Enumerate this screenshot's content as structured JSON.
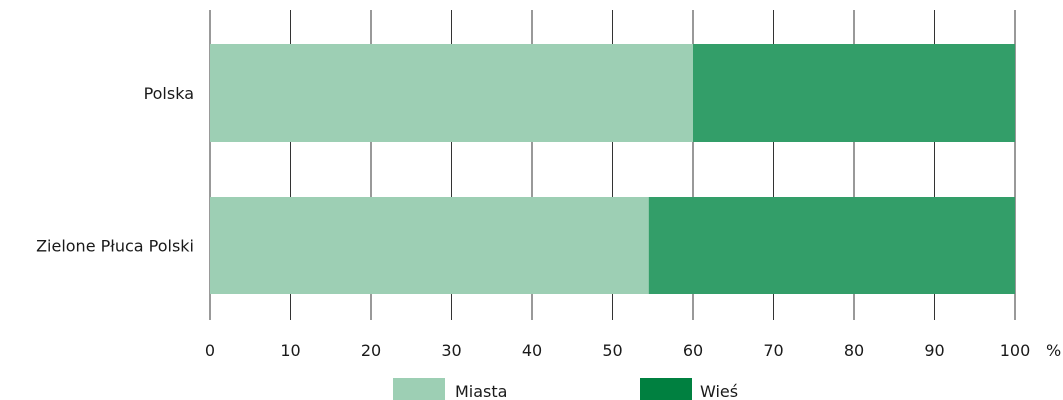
{
  "chart_data": {
    "type": "bar",
    "orientation": "horizontal",
    "stacked": true,
    "categories": [
      "Polska",
      "Zielone Płuca Polski"
    ],
    "series": [
      {
        "name": "Miasta",
        "values": [
          60,
          54.5
        ],
        "color": "#9dcfb4"
      },
      {
        "name": "Wieś",
        "values": [
          40,
          45.5
        ],
        "color": "#339e69"
      }
    ],
    "xlim": [
      0,
      100
    ],
    "xticks": [
      "0",
      "10",
      "20",
      "30",
      "40",
      "50",
      "60",
      "70",
      "80",
      "90",
      "100"
    ],
    "xunit": "%",
    "grid": true,
    "legend_position": "bottom"
  }
}
